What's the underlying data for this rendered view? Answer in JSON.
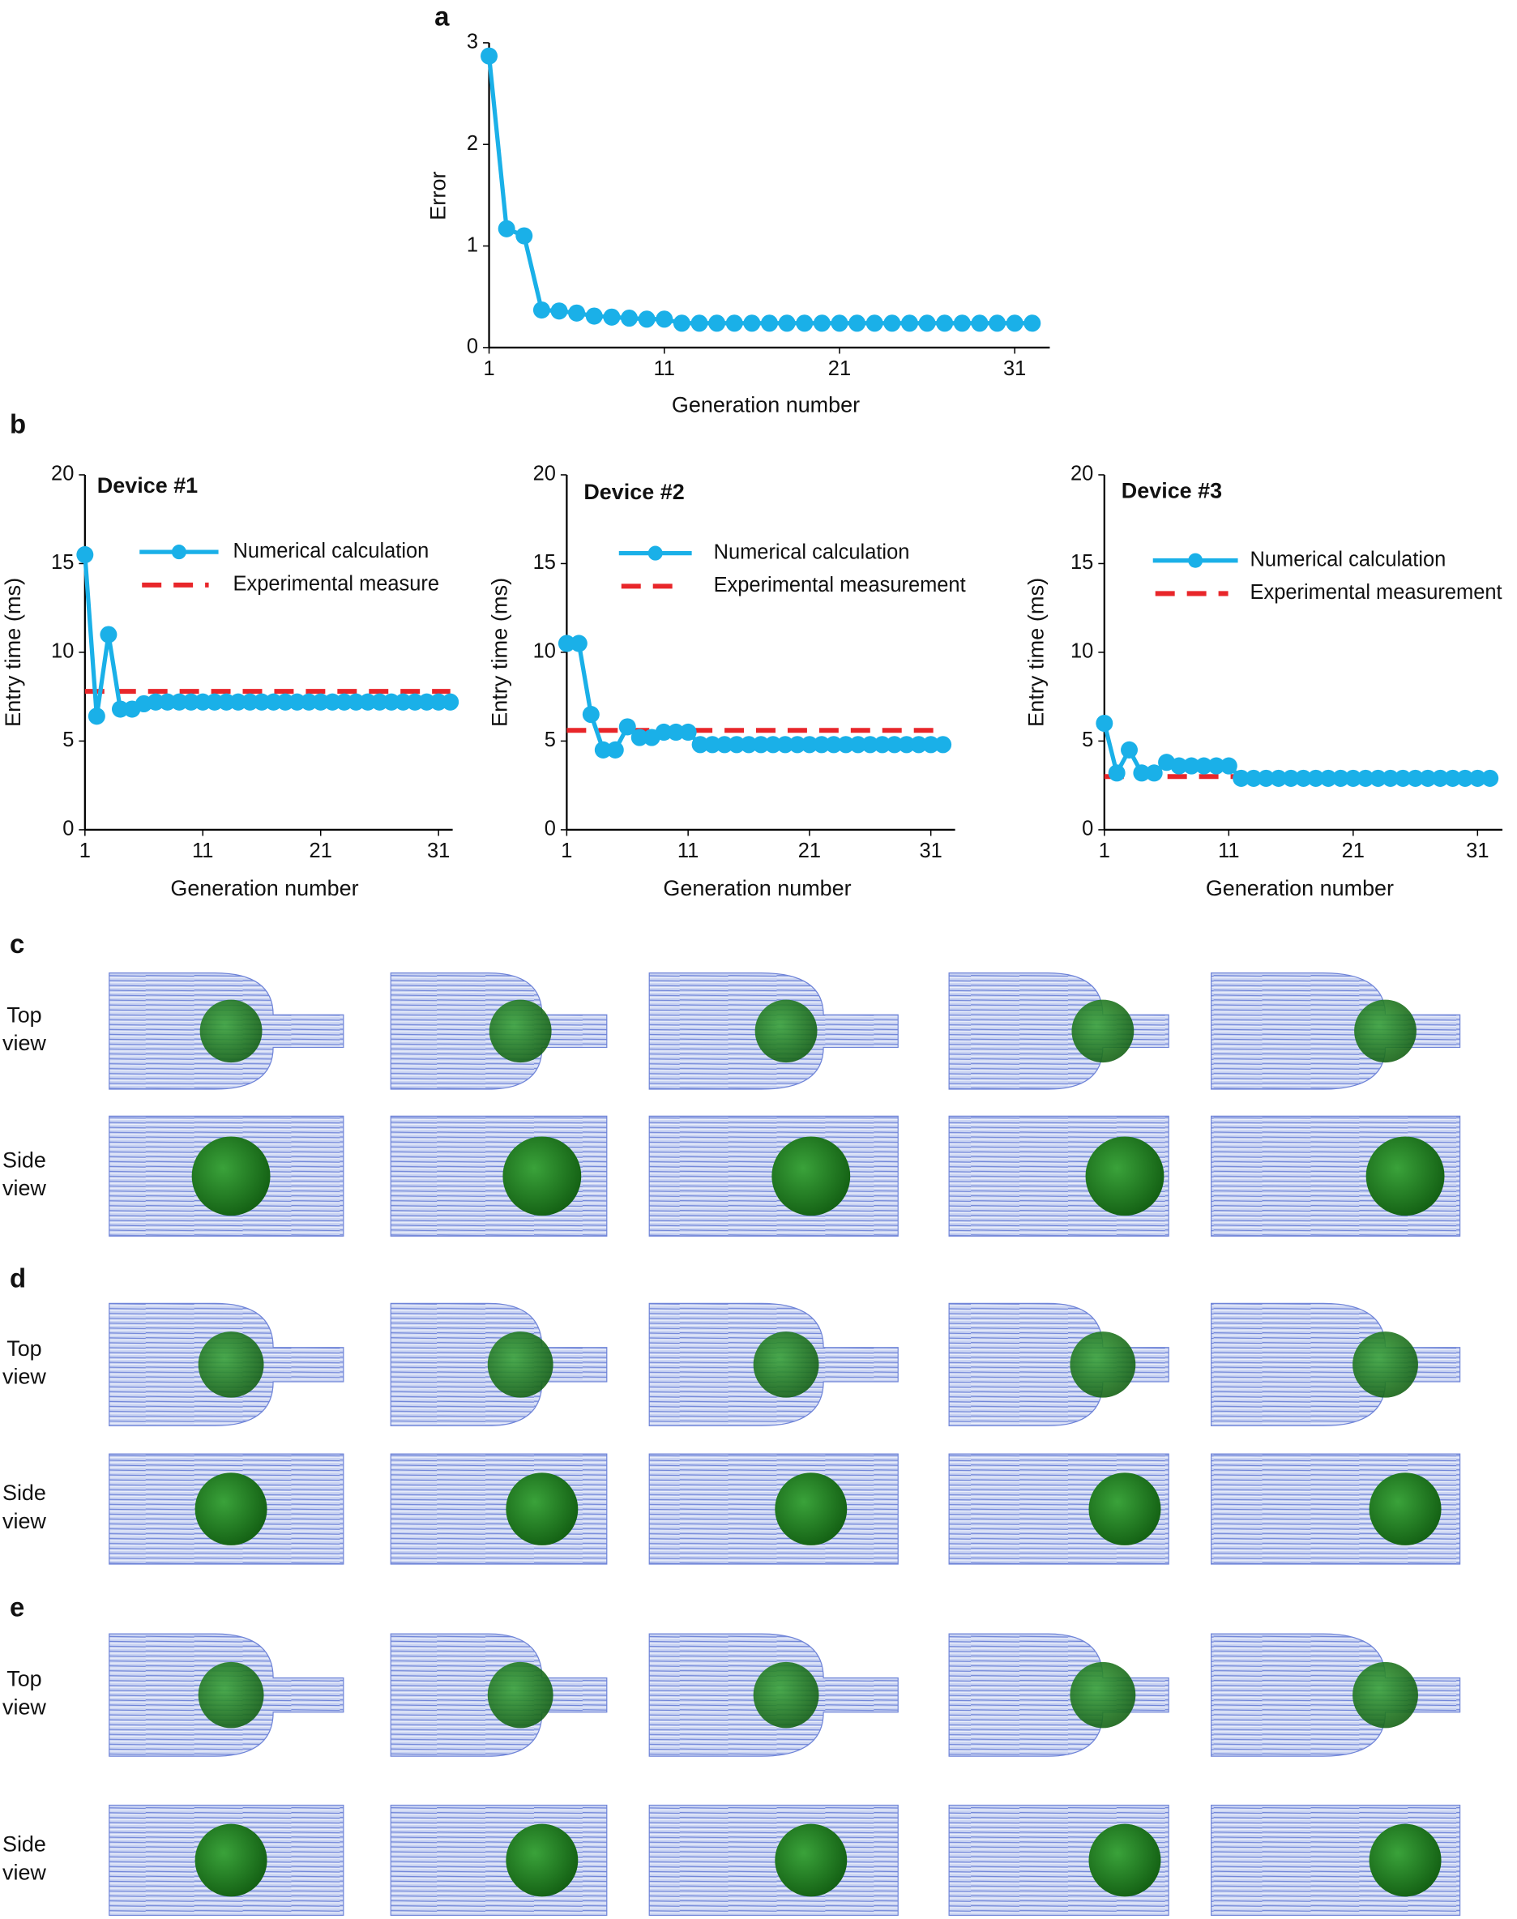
{
  "panel_labels": [
    "a",
    "b",
    "c",
    "d",
    "e"
  ],
  "chart_data": [
    {
      "type": "line",
      "x_label": "Generation number",
      "y_label": "Error",
      "x": [
        1,
        2,
        3,
        4,
        5,
        6,
        7,
        8,
        9,
        10,
        11,
        12,
        13,
        14,
        15,
        16,
        17,
        18,
        19,
        20,
        21,
        22,
        23,
        24,
        25,
        26,
        27,
        28,
        29,
        30,
        31,
        32
      ],
      "xlim": [
        1,
        33
      ],
      "xticks": [
        1,
        11,
        21,
        31
      ],
      "ylim": [
        0,
        3
      ],
      "yticks": [
        0,
        1,
        2,
        3
      ],
      "series": [
        {
          "color": "#1ab0e8",
          "values": [
            2.87,
            1.17,
            1.1,
            0.37,
            0.36,
            0.34,
            0.31,
            0.3,
            0.29,
            0.28,
            0.28,
            0.24,
            0.24,
            0.24,
            0.24,
            0.24,
            0.24,
            0.24,
            0.24,
            0.24,
            0.24,
            0.24,
            0.24,
            0.24,
            0.24,
            0.24,
            0.24,
            0.24,
            0.24,
            0.24,
            0.24,
            0.24
          ]
        }
      ]
    },
    {
      "type": "line",
      "title": "Device #1",
      "x_label": "Generation number",
      "y_label": "Entry time (ms)",
      "x": [
        1,
        2,
        3,
        4,
        5,
        6,
        7,
        8,
        9,
        10,
        11,
        12,
        13,
        14,
        15,
        16,
        17,
        18,
        19,
        20,
        21,
        22,
        23,
        24,
        25,
        26,
        27,
        28,
        29,
        30,
        31,
        32
      ],
      "xlim": [
        1,
        32.2
      ],
      "xticks": [
        1,
        11,
        21,
        31
      ],
      "ylim": [
        0,
        20
      ],
      "yticks": [
        0,
        5,
        10,
        15,
        20
      ],
      "series": [
        {
          "name": "Numerical calculation",
          "color": "#1ab0e8",
          "values": [
            15.5,
            6.4,
            11.0,
            6.8,
            6.8,
            7.1,
            7.2,
            7.2,
            7.2,
            7.2,
            7.2,
            7.2,
            7.2,
            7.2,
            7.2,
            7.2,
            7.2,
            7.2,
            7.2,
            7.2,
            7.2,
            7.2,
            7.2,
            7.2,
            7.2,
            7.2,
            7.2,
            7.2,
            7.2,
            7.2,
            7.2,
            7.2
          ]
        }
      ],
      "reference": {
        "name": "Experimental measure",
        "color": "#e8262a",
        "value": 7.8
      }
    },
    {
      "type": "line",
      "title": "Device #2",
      "x_label": "Generation number",
      "y_label": "Entry time (ms)",
      "x": [
        1,
        2,
        3,
        4,
        5,
        6,
        7,
        8,
        9,
        10,
        11,
        12,
        13,
        14,
        15,
        16,
        17,
        18,
        19,
        20,
        21,
        22,
        23,
        24,
        25,
        26,
        27,
        28,
        29,
        30,
        31,
        32
      ],
      "xlim": [
        1,
        33
      ],
      "xticks": [
        1,
        11,
        21,
        31
      ],
      "ylim": [
        0,
        20
      ],
      "yticks": [
        0,
        5,
        10,
        15,
        20
      ],
      "series": [
        {
          "name": "Numerical calculation",
          "color": "#1ab0e8",
          "values": [
            10.5,
            10.5,
            6.5,
            4.5,
            4.5,
            5.8,
            5.2,
            5.2,
            5.5,
            5.5,
            5.5,
            4.8,
            4.8,
            4.8,
            4.8,
            4.8,
            4.8,
            4.8,
            4.8,
            4.8,
            4.8,
            4.8,
            4.8,
            4.8,
            4.8,
            4.8,
            4.8,
            4.8,
            4.8,
            4.8,
            4.8,
            4.8
          ]
        }
      ],
      "reference": {
        "name": "Experimental measurement",
        "color": "#e8262a",
        "value": 5.6
      }
    },
    {
      "type": "line",
      "title": "Device #3",
      "x_label": "Generation number",
      "y_label": "Entry time (ms)",
      "x": [
        1,
        2,
        3,
        4,
        5,
        6,
        7,
        8,
        9,
        10,
        11,
        12,
        13,
        14,
        15,
        16,
        17,
        18,
        19,
        20,
        21,
        22,
        23,
        24,
        25,
        26,
        27,
        28,
        29,
        30,
        31,
        32
      ],
      "xlim": [
        1,
        33
      ],
      "xticks": [
        1,
        11,
        21,
        31
      ],
      "ylim": [
        0,
        20
      ],
      "yticks": [
        0,
        5,
        10,
        15,
        20
      ],
      "series": [
        {
          "name": "Numerical calculation",
          "color": "#1ab0e8",
          "values": [
            6.0,
            3.2,
            4.5,
            3.2,
            3.2,
            3.8,
            3.6,
            3.6,
            3.6,
            3.6,
            3.6,
            2.9,
            2.9,
            2.9,
            2.9,
            2.9,
            2.9,
            2.9,
            2.9,
            2.9,
            2.9,
            2.9,
            2.9,
            2.9,
            2.9,
            2.9,
            2.9,
            2.9,
            2.9,
            2.9,
            2.9,
            2.9
          ]
        }
      ],
      "reference": {
        "name": "Experimental measurement",
        "color": "#e8262a",
        "value": 3.0
      }
    }
  ],
  "simulations": [
    {
      "rows": [
        [
          "Top",
          "view"
        ],
        [
          "Side",
          "view"
        ]
      ]
    },
    {
      "rows": [
        [
          "Top",
          "view"
        ],
        [
          "Side",
          "view"
        ]
      ]
    },
    {
      "rows": [
        [
          "Top",
          "view"
        ],
        [
          "Side",
          "view"
        ]
      ]
    }
  ]
}
